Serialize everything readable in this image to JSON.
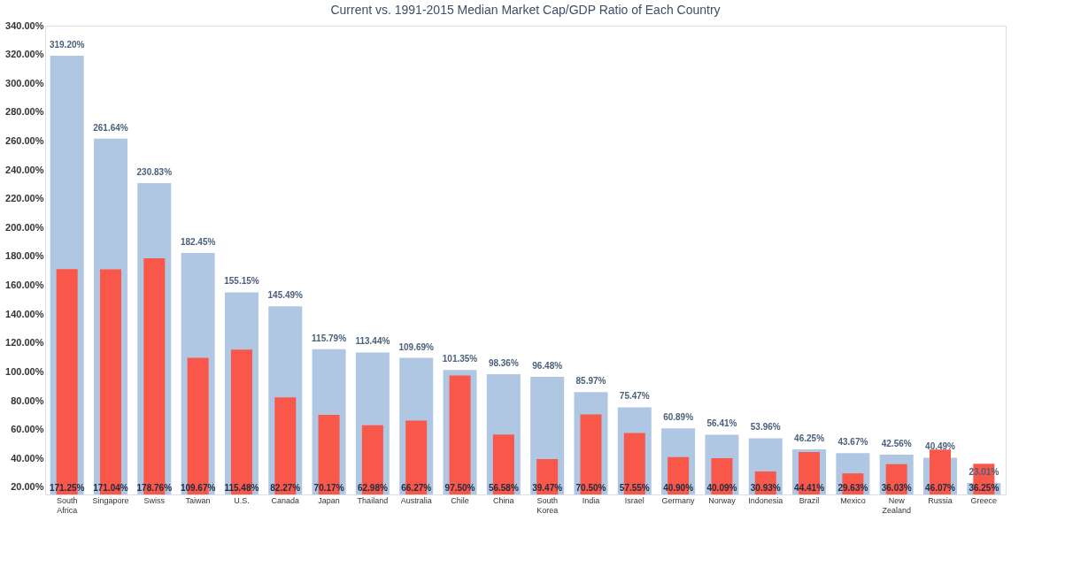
{
  "chart_data": {
    "type": "bar",
    "title": "Current vs. 1991-2015 Median Market Cap/GDP Ratio of Each Country",
    "categories": [
      "South Africa",
      "Singapore",
      "Swiss",
      "Taiwan",
      "U.S.",
      "Canada",
      "Japan",
      "Thailand",
      "Australia",
      "Chile",
      "China",
      "South Korea",
      "India",
      "Israel",
      "Germany",
      "Norway",
      "Indonesia",
      "Brazil",
      "Mexico",
      "New Zealand",
      "Russia",
      "Greece"
    ],
    "series": [
      {
        "color": "#b0c7e3",
        "values": [
          319.2,
          261.64,
          230.83,
          182.45,
          155.15,
          145.49,
          115.79,
          113.44,
          109.69,
          101.35,
          98.36,
          96.48,
          85.97,
          75.47,
          60.89,
          56.41,
          53.96,
          46.25,
          43.67,
          42.56,
          40.49,
          23.01
        ],
        "value_labels": [
          "319.20%",
          "261.64%",
          "230.83%",
          "182.45%",
          "155.15%",
          "145.49%",
          "115.79%",
          "113.44%",
          "109.69%",
          "101.35%",
          "98.36%",
          "96.48%",
          "85.97%",
          "75.47%",
          "60.89%",
          "56.41%",
          "53.96%",
          "46.25%",
          "43.67%",
          "42.56%",
          "40.49%",
          "23.01%"
        ]
      },
      {
        "color": "#f8574a",
        "values": [
          171.25,
          171.04,
          178.76,
          109.67,
          115.48,
          82.27,
          70.17,
          62.98,
          66.27,
          97.5,
          56.58,
          39.47,
          70.5,
          57.55,
          40.9,
          40.09,
          30.93,
          44.41,
          29.63,
          36.03,
          46.07,
          36.25
        ],
        "value_labels": [
          "171.25%",
          "171.04%",
          "178.76%",
          "109.67%",
          "115.48%",
          "82.27%",
          "70.17%",
          "62.98%",
          "66.27%",
          "97.50%",
          "56.58%",
          "39.47%",
          "70.50%",
          "57.55%",
          "40.90%",
          "40.09%",
          "30.93%",
          "44.41%",
          "29.63%",
          "36.03%",
          "46.07%",
          "36.25%"
        ]
      }
    ],
    "ylim": [
      15,
      340
    ],
    "yticks": [
      {
        "value": 20,
        "label": "20.00%"
      },
      {
        "value": 40,
        "label": "40.00%"
      },
      {
        "value": 60,
        "label": "60.00%"
      },
      {
        "value": 80,
        "label": "80.00%"
      },
      {
        "value": 100,
        "label": "100.00%"
      },
      {
        "value": 120,
        "label": "120.00%"
      },
      {
        "value": 140,
        "label": "140.00%"
      },
      {
        "value": 160,
        "label": "160.00%"
      },
      {
        "value": 180,
        "label": "180.00%"
      },
      {
        "value": 200,
        "label": "200.00%"
      },
      {
        "value": 220,
        "label": "220.00%"
      },
      {
        "value": 240,
        "label": "240.00%"
      },
      {
        "value": 260,
        "label": "260.00%"
      },
      {
        "value": 280,
        "label": "280.00%"
      },
      {
        "value": 300,
        "label": "300.00%"
      },
      {
        "value": 320,
        "label": "320.00%"
      },
      {
        "value": 340,
        "label": "340.00%"
      }
    ],
    "grid": false,
    "legend": false
  }
}
